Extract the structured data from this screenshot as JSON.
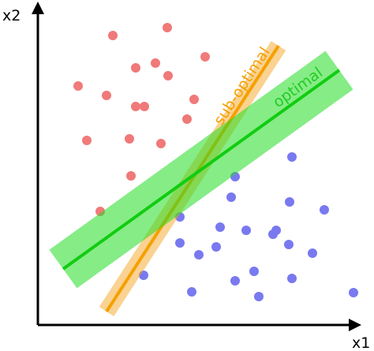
{
  "axes": {
    "x_label": "x1",
    "y_label": "x2"
  },
  "lines": {
    "optimal": "optimal",
    "sub_optimal": "sub-optimal"
  }
}
